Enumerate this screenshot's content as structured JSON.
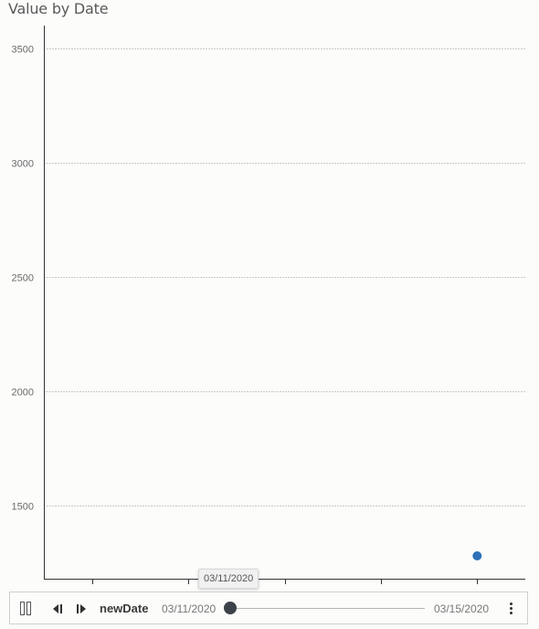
{
  "chart_data": {
    "type": "scatter",
    "title": "Value by Date",
    "xlabel": "",
    "ylabel": "",
    "ylim": [
      1180,
      3600
    ],
    "y_ticks": [
      1500,
      2000,
      2500,
      3000,
      3500
    ],
    "y_tick_labels": [
      "1500",
      "2000",
      "2500",
      "3000",
      "3500"
    ],
    "xlim": [
      "2020-03-10 12:00",
      "2020-03-15 12:00"
    ],
    "x_ticks": [
      "2020-03-11",
      "2020-03-12",
      "2020-03-13",
      "2020-03-14",
      "2020-03-15"
    ],
    "grid": {
      "y": true,
      "x": false
    },
    "points": [
      {
        "x": "2020-03-15",
        "y": 1280
      }
    ],
    "point_color": "#2e71b8"
  },
  "player": {
    "field": "newDate",
    "start_label": "03/11/2020",
    "end_label": "03/15/2020",
    "current_label": "03/11/2020",
    "current_position": 0,
    "icons": [
      "pause-icon",
      "step-back-icon",
      "step-forward-icon",
      "more-options-icon"
    ]
  }
}
